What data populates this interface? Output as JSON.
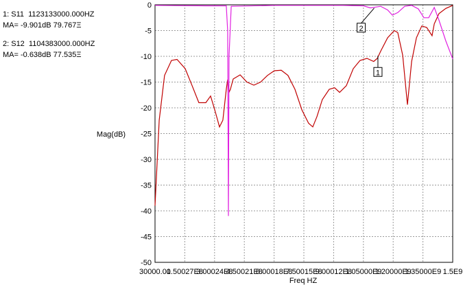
{
  "chart_data": {
    "type": "line",
    "y_label": "Mag(dB)",
    "x_label": "Freq HZ",
    "readouts": [
      "1: S11  1123133000.000HZ",
      "MA= -9.901dB 79.767Ξ",
      "2: S12  1104383000.000HZ",
      "MA= -0.638dB 77.535Ξ"
    ],
    "xlim": [
      30000,
      1500000000
    ],
    "xticks": [
      {
        "value": 30000,
        "label": "30000.00"
      },
      {
        "value": 150027000,
        "label": "1.50027E8"
      },
      {
        "value": 300024000,
        "label": "3.00024E8"
      },
      {
        "value": 450021000,
        "label": "4.50021E8"
      },
      {
        "value": 600018000,
        "label": "6.00018E8"
      },
      {
        "value": 750015000,
        "label": "7.50015E8"
      },
      {
        "value": 900012000,
        "label": "9.00012E8"
      },
      {
        "value": 1050009000,
        "label": "1.05000E9"
      },
      {
        "value": 1200006000,
        "label": "1.20000E9"
      },
      {
        "value": 1350003000,
        "label": "1.35000E9"
      },
      {
        "value": 1500000000,
        "label": "1.5E9"
      }
    ],
    "ylim": [
      -50,
      0
    ],
    "yticks": [
      0,
      -5,
      -10,
      -15,
      -20,
      -25,
      -30,
      -35,
      -40,
      -45,
      -50
    ],
    "grid": true,
    "series": [
      {
        "name": "S11",
        "color": "#c00000",
        "x": [
          30000,
          21000000,
          48000000,
          83000000,
          111000000,
          152000000,
          187000000,
          221000000,
          256000000,
          280000000,
          301000000,
          325000000,
          342000000,
          359000000,
          366000000,
          373000000,
          380000000,
          394000000,
          429000000,
          463000000,
          498000000,
          532000000,
          567000000,
          601000000,
          636000000,
          670000000,
          705000000,
          740000000,
          774000000,
          795000000,
          816000000,
          843000000,
          878000000,
          905000000,
          930000000,
          964000000,
          999000000,
          1033000000,
          1068000000,
          1102000000,
          1120000000,
          1137000000,
          1172000000,
          1206000000,
          1223000000,
          1248000000,
          1272000000,
          1293000000,
          1317000000,
          1344000000,
          1369000000,
          1396000000,
          1407000000,
          1431000000,
          1465000000,
          1500000000
        ],
        "values": [
          -39,
          -22.4,
          -13.7,
          -10.8,
          -10.6,
          -12.4,
          -15.7,
          -19,
          -19,
          -17.7,
          -20.4,
          -23.7,
          -22.4,
          -16.4,
          -14.5,
          -17,
          -16.4,
          -14.4,
          -13.6,
          -15,
          -15.6,
          -15,
          -13.7,
          -12.8,
          -12.7,
          -13.7,
          -16.4,
          -20.4,
          -23,
          -23.7,
          -21.7,
          -18.4,
          -16.4,
          -16.1,
          -17,
          -15.7,
          -12.4,
          -10.8,
          -10.4,
          -11,
          -10.4,
          -9,
          -6.4,
          -5,
          -5.4,
          -9.8,
          -19.4,
          -11,
          -6.4,
          -4.1,
          -4.4,
          -6,
          -3.7,
          -1.7,
          -0.7,
          -0.1
        ]
      },
      {
        "name": "S12",
        "color": "#e020e0",
        "x": [
          30000,
          256000000,
          359000000,
          366000000,
          370000000,
          373000000,
          384000000,
          601000000,
          947000000,
          1051000000,
          1085000000,
          1137000000,
          1172000000,
          1196000000,
          1223000000,
          1258000000,
          1293000000,
          1327000000,
          1355000000,
          1379000000,
          1407000000,
          1431000000,
          1465000000,
          1500000000
        ],
        "values": [
          -0.1,
          -0.2,
          -0.2,
          -5,
          -41,
          -10,
          -0.3,
          -0.1,
          -0.1,
          -0.2,
          -0.6,
          -0.3,
          -1,
          -2,
          -1.5,
          -0.3,
          -0.1,
          -0.8,
          -2.5,
          -2.5,
          -0.5,
          -3,
          -7,
          -10.5
        ]
      }
    ],
    "markers": [
      {
        "label": "1",
        "x": 1123133000,
        "value": -9.901
      },
      {
        "label": "2",
        "x": 1104383000,
        "value": -0.638
      }
    ]
  }
}
